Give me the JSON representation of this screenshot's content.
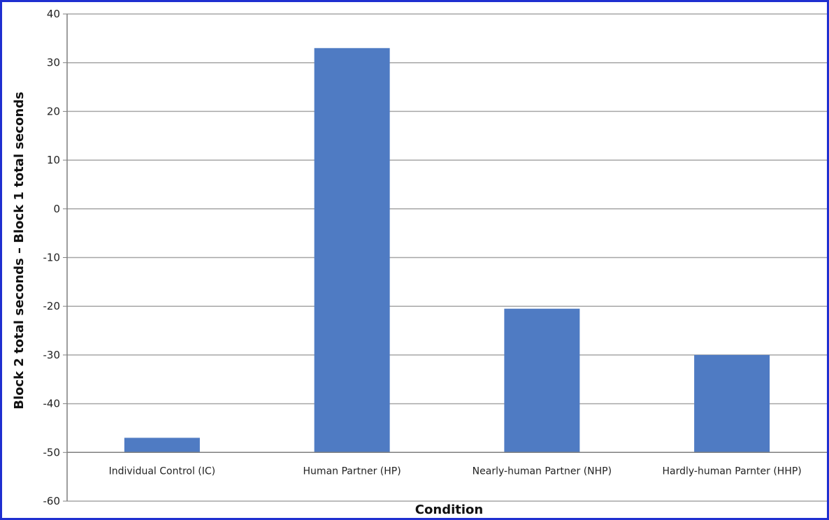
{
  "chart_data": {
    "type": "bar",
    "title": "",
    "xlabel": "Condition",
    "ylabel": "Block 2 total seconds – Block 1 total seconds",
    "ylim": [
      -60,
      40
    ],
    "yticks": [
      40,
      30,
      20,
      10,
      0,
      -10,
      -20,
      -30,
      -40,
      -50,
      -60
    ],
    "grid": true,
    "legend": "none",
    "categories": [
      "Individual Control (IC)",
      "Human Partner (HP)",
      "Nearly-human Partner (NHP)",
      "Hardly-human Parnter (HHP)"
    ],
    "values": [
      -47,
      33,
      -20.5,
      -30
    ],
    "baseline": -50,
    "colors": {
      "bar": "#4f7bc3",
      "grid": "#a6a6a6",
      "axis": "#7f7f7f",
      "frame": "#1f2fd0"
    }
  }
}
